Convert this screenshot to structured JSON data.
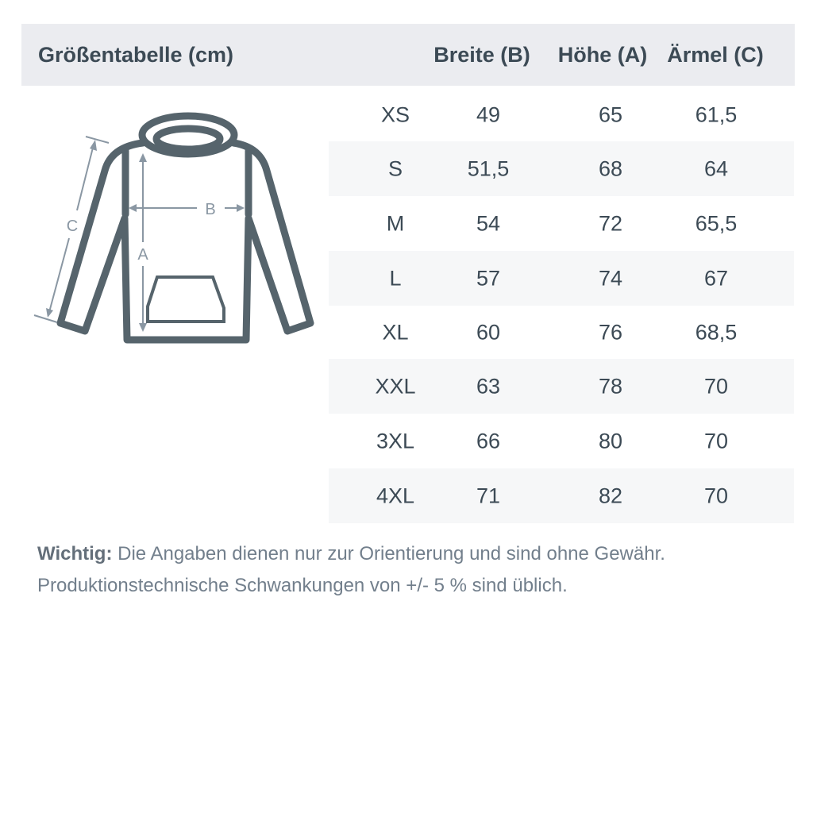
{
  "header": {
    "title": "Größentabelle (cm)",
    "columns": [
      "Breite (B)",
      "Höhe (A)",
      "Ärmel (C)"
    ]
  },
  "diagram": {
    "labels": {
      "width": "B",
      "height": "A",
      "sleeve": "C"
    },
    "stroke_color": "#56646c",
    "arrow_color": "#8a97a3"
  },
  "rows": [
    {
      "size": "XS",
      "breite": "49",
      "hoehe": "65",
      "aermel": "61,5"
    },
    {
      "size": "S",
      "breite": "51,5",
      "hoehe": "68",
      "aermel": "64"
    },
    {
      "size": "M",
      "breite": "54",
      "hoehe": "72",
      "aermel": "65,5"
    },
    {
      "size": "L",
      "breite": "57",
      "hoehe": "74",
      "aermel": "67"
    },
    {
      "size": "XL",
      "breite": "60",
      "hoehe": "76",
      "aermel": "68,5"
    },
    {
      "size": "XXL",
      "breite": "63",
      "hoehe": "78",
      "aermel": "70"
    },
    {
      "size": "3XL",
      "breite": "66",
      "hoehe": "80",
      "aermel": "70"
    },
    {
      "size": "4XL",
      "breite": "71",
      "hoehe": "82",
      "aermel": "70"
    }
  ],
  "note": {
    "label": "Wichtig:",
    "line1": " Die Angaben dienen nur zur Orientierung und sind ohne Gewähr.",
    "line2": "Produktionstechnische Schwankungen von +/- 5 % sind üblich."
  }
}
